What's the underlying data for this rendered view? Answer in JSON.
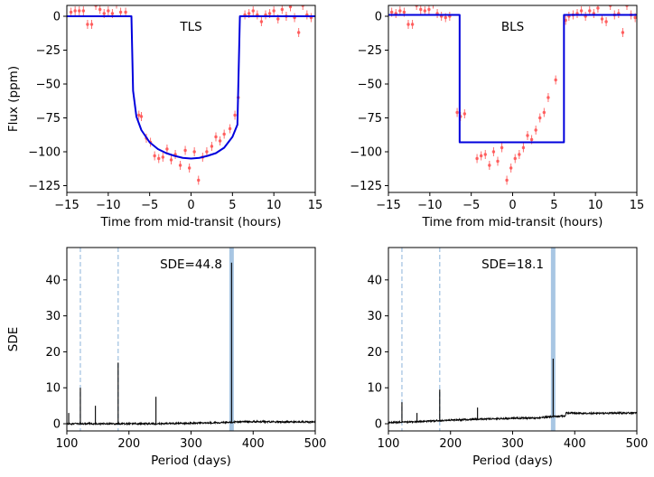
{
  "colors": {
    "model_line": "#0000dd",
    "data_points": "#ff5555",
    "periodogram_line": "#000000",
    "harmonic_lines": "#9ec0e0",
    "period_band": "#9ec0e0"
  },
  "chart_data": [
    {
      "type": "line",
      "panel": "transit-tls",
      "title": "TLS",
      "xlabel": "Time from mid-transit (hours)",
      "ylabel": "Flux (ppm)",
      "xlim": [
        -15,
        15
      ],
      "ylim": [
        -130,
        8
      ],
      "xticks": [
        -15,
        -10,
        -5,
        0,
        5,
        10,
        15
      ],
      "xtick_labels": [
        "−15",
        "−10",
        "−5",
        "0",
        "5",
        "10",
        "15"
      ],
      "yticks": [
        0,
        -25,
        -50,
        -75,
        -100,
        -125
      ],
      "ytick_labels": [
        "0",
        "−25",
        "−50",
        "−75",
        "−100",
        "−125"
      ],
      "grid": false,
      "series": [
        {
          "kind": "model",
          "x": [
            -15,
            -7.2,
            -7.0,
            -6.6,
            -6.0,
            -5.0,
            -4.0,
            -3.0,
            -2.0,
            -1.0,
            0,
            1.0,
            2.0,
            3.0,
            4.0,
            5.0,
            5.6,
            5.9,
            15
          ],
          "y": [
            0,
            0,
            -55,
            -74,
            -84,
            -93,
            -98,
            -101,
            -103,
            -104.5,
            -105,
            -104.5,
            -103,
            -101,
            -97,
            -89,
            -80,
            0,
            0
          ]
        },
        {
          "kind": "data",
          "x": [
            -14.5,
            -14.0,
            -13.5,
            -13.0,
            -12.5,
            -12.0,
            -11.5,
            -11.0,
            -10.5,
            -10.0,
            -9.5,
            -9.0,
            -8.5,
            -7.9,
            -6.3,
            -6.0,
            -5.4,
            -4.9,
            -4.4,
            -3.9,
            -3.4,
            -2.9,
            -2.4,
            -1.9,
            -1.3,
            -0.7,
            -0.2,
            0.4,
            0.9,
            1.4,
            1.9,
            2.5,
            3.0,
            3.5,
            4.0,
            4.7,
            5.3,
            5.7,
            6.5,
            7.0,
            7.5,
            8.0,
            8.5,
            9.0,
            9.5,
            10.0,
            10.5,
            11.0,
            11.5,
            12.0,
            12.5,
            13.0,
            13.5,
            14.0,
            14.5
          ],
          "y": [
            3,
            4,
            4,
            4,
            -6,
            -6,
            8,
            5,
            2,
            4,
            2,
            9,
            3,
            3,
            -73,
            -74,
            -90,
            -93,
            -103,
            -105,
            -104,
            -98,
            -106,
            -102,
            -110,
            -99,
            -112,
            -100,
            -121,
            -104,
            -100,
            -96,
            -89,
            -92,
            -87,
            -83,
            -73,
            -60,
            1,
            2,
            4,
            1,
            -4,
            1,
            2,
            4,
            -2,
            5,
            0,
            7,
            -1,
            -12,
            8,
            1,
            -1
          ]
        }
      ]
    },
    {
      "type": "line",
      "panel": "transit-bls",
      "title": "BLS",
      "xlabel": "Time from mid-transit (hours)",
      "ylabel": "",
      "xlim": [
        -15,
        15
      ],
      "ylim": [
        -130,
        8
      ],
      "xticks": [
        -15,
        -10,
        -5,
        0,
        5,
        10,
        15
      ],
      "xtick_labels": [
        "−15",
        "−10",
        "−5",
        "0",
        "5",
        "10",
        "15"
      ],
      "yticks": [
        0,
        -25,
        -50,
        -75,
        -100,
        -125
      ],
      "ytick_labels": [
        "0",
        "−25",
        "−50",
        "−75",
        "−100",
        "−125"
      ],
      "grid": false,
      "series": [
        {
          "kind": "model",
          "x": [
            -15,
            -6.4,
            -6.4,
            6.2,
            6.2,
            15
          ],
          "y": [
            1,
            1,
            -93,
            -93,
            1,
            1
          ]
        },
        {
          "kind": "data",
          "x": [
            -14.6,
            -14.1,
            -13.6,
            -13.1,
            -12.6,
            -12.1,
            -11.6,
            -11.1,
            -10.6,
            -10.1,
            -9.6,
            -9.1,
            -8.6,
            -8.1,
            -7.6,
            -6.7,
            -6.3,
            -5.8,
            -4.3,
            -3.8,
            -3.3,
            -2.8,
            -2.3,
            -1.8,
            -1.3,
            -0.7,
            -0.2,
            0.3,
            0.8,
            1.3,
            1.8,
            2.3,
            2.8,
            3.3,
            3.8,
            4.3,
            5.2,
            6.4,
            6.8,
            7.3,
            7.8,
            8.3,
            8.8,
            9.3,
            9.8,
            10.3,
            10.8,
            11.3,
            11.8,
            12.3,
            12.8,
            13.3,
            13.8,
            14.3,
            14.8
          ],
          "y": [
            3,
            2,
            4,
            3,
            -6,
            -6,
            8,
            5,
            4,
            5,
            9,
            2,
            0,
            -1,
            0,
            -71,
            -74,
            -72,
            -105,
            -103,
            -102,
            -110,
            -100,
            -107,
            -97,
            -121,
            -112,
            -105,
            -102,
            -97,
            -88,
            -91,
            -84,
            -75,
            -71,
            -60,
            -47,
            -3,
            0,
            1,
            2,
            4,
            0,
            4,
            2,
            6,
            -2,
            -4,
            8,
            1,
            2,
            -12,
            8,
            1,
            -1
          ]
        }
      ]
    },
    {
      "type": "line",
      "panel": "periodogram-tls",
      "annotation": "SDE=44.8",
      "xlabel": "Period (days)",
      "ylabel": "SDE",
      "xlim": [
        100,
        500
      ],
      "ylim": [
        -2,
        49
      ],
      "xticks": [
        100,
        200,
        300,
        400,
        500
      ],
      "xtick_labels": [
        "100",
        "200",
        "300",
        "400",
        "500"
      ],
      "yticks": [
        0,
        10,
        20,
        30,
        40
      ],
      "ytick_labels": [
        "0",
        "10",
        "20",
        "30",
        "40"
      ],
      "grid": false,
      "highlight_period": 365.25,
      "harmonic_periods": [
        121.75,
        182.6
      ],
      "baseline": [
        [
          100,
          0
        ],
        [
          250,
          0
        ],
        [
          340,
          0.3
        ],
        [
          365,
          0.4
        ],
        [
          380,
          0.6
        ],
        [
          500,
          0.5
        ]
      ],
      "peaks": [
        [
          103,
          3
        ],
        [
          121.75,
          10
        ],
        [
          146,
          5
        ],
        [
          182.6,
          17
        ],
        [
          243.5,
          7.5
        ],
        [
          365.25,
          44.8
        ]
      ]
    },
    {
      "type": "line",
      "panel": "periodogram-bls",
      "annotation": "SDE=18.1",
      "xlabel": "Period (days)",
      "ylabel": "",
      "xlim": [
        100,
        500
      ],
      "ylim": [
        -2,
        49
      ],
      "xticks": [
        100,
        200,
        300,
        400,
        500
      ],
      "xtick_labels": [
        "100",
        "200",
        "300",
        "400",
        "500"
      ],
      "yticks": [
        0,
        10,
        20,
        30,
        40
      ],
      "ytick_labels": [
        "0",
        "10",
        "20",
        "30",
        "40"
      ],
      "grid": false,
      "highlight_period": 365.25,
      "harmonic_periods": [
        121.75,
        182.6
      ],
      "baseline": [
        [
          100,
          0.3
        ],
        [
          150,
          0.6
        ],
        [
          200,
          1.0
        ],
        [
          250,
          1.3
        ],
        [
          300,
          1.5
        ],
        [
          340,
          1.6
        ],
        [
          355,
          1.9
        ],
        [
          375,
          2.1
        ],
        [
          385,
          2.1
        ],
        [
          386,
          3.0
        ],
        [
          430,
          2.9
        ],
        [
          500,
          3.0
        ]
      ],
      "peaks": [
        [
          121.75,
          6
        ],
        [
          146,
          3
        ],
        [
          182.6,
          9.5
        ],
        [
          243.5,
          4.5
        ],
        [
          365.25,
          18.1
        ]
      ]
    }
  ]
}
